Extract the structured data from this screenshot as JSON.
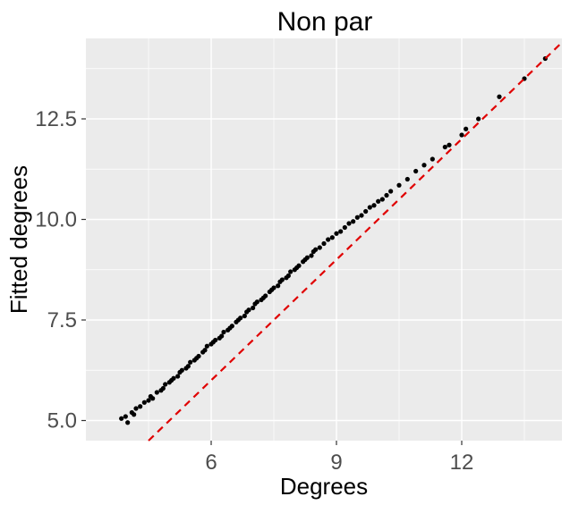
{
  "chart_data": {
    "type": "scatter",
    "title": "Non par",
    "xlabel": "Degrees",
    "ylabel": "Fitted degrees",
    "xlim": [
      3.0,
      14.4
    ],
    "ylim": [
      4.5,
      14.5
    ],
    "x_ticks": [
      6,
      9,
      12
    ],
    "x_tick_labels": [
      "6",
      "9",
      "12"
    ],
    "y_ticks": [
      5.0,
      7.5,
      10.0,
      12.5
    ],
    "y_tick_labels": [
      "5.0",
      "7.5",
      "10.0",
      "12.5"
    ],
    "grid": true,
    "legend": "none",
    "colors": {
      "panel": "#ebebeb",
      "grid": "#ffffff",
      "points": "#000000",
      "reference_line": "#e00000",
      "tick_label": "#4d4d4d"
    },
    "reference_line": {
      "type": "identity",
      "slope": 1,
      "intercept": 0,
      "style": "dashed"
    },
    "series": [
      {
        "x": [
          3.85,
          3.95,
          4.0,
          4.1,
          4.15,
          4.2,
          4.3,
          4.4,
          4.5,
          4.55,
          4.6,
          4.7,
          4.8,
          4.85,
          4.9,
          5.0,
          5.05,
          5.1,
          5.2,
          5.25,
          5.3,
          5.4,
          5.45,
          5.5,
          5.6,
          5.65,
          5.7,
          5.8,
          5.85,
          5.9,
          6.0,
          6.05,
          6.1,
          6.2,
          6.25,
          6.3,
          6.4,
          6.45,
          6.5,
          6.6,
          6.65,
          6.7,
          6.8,
          6.85,
          6.9,
          7.0,
          7.05,
          7.1,
          7.2,
          7.25,
          7.3,
          7.4,
          7.45,
          7.5,
          7.6,
          7.65,
          7.7,
          7.8,
          7.85,
          7.9,
          8.0,
          8.05,
          8.1,
          8.2,
          8.25,
          8.3,
          8.4,
          8.45,
          8.5,
          8.6,
          8.7,
          8.8,
          8.9,
          9.0,
          9.1,
          9.2,
          9.3,
          9.4,
          9.5,
          9.6,
          9.7,
          9.8,
          9.9,
          10.0,
          10.1,
          10.2,
          10.3,
          10.5,
          10.7,
          10.9,
          11.1,
          11.3,
          11.6,
          11.7,
          12.0,
          12.1,
          12.4,
          12.9,
          13.5,
          14.0
        ],
        "y": [
          5.05,
          5.1,
          4.95,
          5.2,
          5.15,
          5.3,
          5.35,
          5.45,
          5.5,
          5.6,
          5.55,
          5.7,
          5.75,
          5.8,
          5.9,
          5.95,
          6.0,
          6.05,
          6.1,
          6.2,
          6.25,
          6.3,
          6.35,
          6.45,
          6.5,
          6.55,
          6.6,
          6.7,
          6.75,
          6.85,
          6.9,
          6.95,
          7.0,
          7.05,
          7.1,
          7.2,
          7.25,
          7.3,
          7.35,
          7.45,
          7.5,
          7.55,
          7.6,
          7.7,
          7.75,
          7.8,
          7.9,
          7.95,
          8.0,
          8.05,
          8.1,
          8.2,
          8.25,
          8.3,
          8.35,
          8.45,
          8.5,
          8.55,
          8.6,
          8.7,
          8.75,
          8.8,
          8.85,
          8.95,
          9.0,
          9.05,
          9.1,
          9.2,
          9.25,
          9.3,
          9.4,
          9.5,
          9.55,
          9.65,
          9.7,
          9.8,
          9.9,
          9.95,
          10.05,
          10.1,
          10.2,
          10.3,
          10.35,
          10.45,
          10.5,
          10.6,
          10.7,
          10.85,
          11.0,
          11.2,
          11.35,
          11.5,
          11.8,
          11.85,
          12.1,
          12.25,
          12.5,
          13.05,
          13.5,
          14.0
        ]
      }
    ]
  }
}
